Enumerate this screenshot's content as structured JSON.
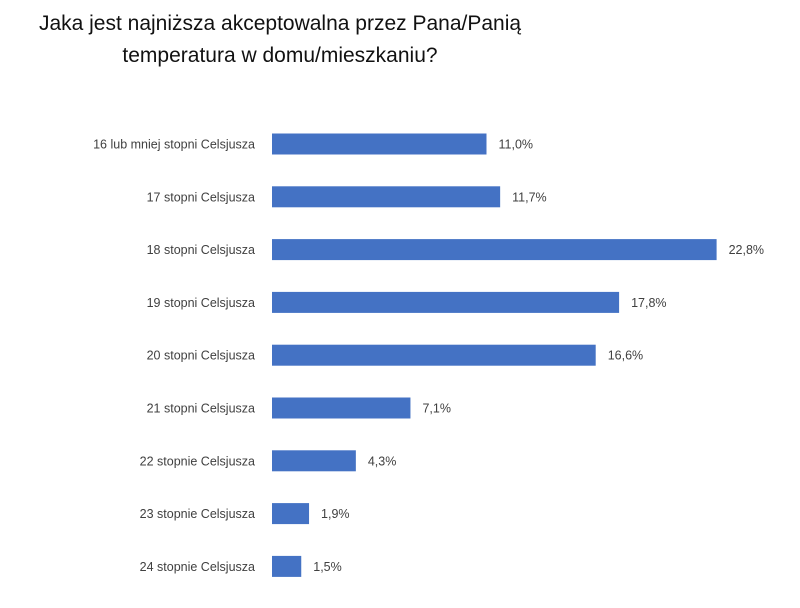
{
  "chart_data": {
    "type": "bar",
    "orientation": "horizontal",
    "title_lines": [
      "Jaka jest najniższa akceptowalna przez Pana/Panią",
      "temperatura w domu/mieszkaniu?"
    ],
    "categories": [
      "16 lub mniej stopni Celsjusza",
      "17 stopni Celsjusza",
      "18 stopni Celsjusza",
      "19 stopni Celsjusza",
      "20 stopni Celsjusza",
      "21 stopni Celsjusza",
      "22 stopnie Celsjusza",
      "23 stopnie Celsjusza",
      "24 stopnie Celsjusza"
    ],
    "values": [
      11.0,
      11.7,
      22.8,
      17.8,
      16.6,
      7.1,
      4.3,
      1.9,
      1.5
    ],
    "data_labels": [
      "11,0%",
      "11,7%",
      "22,8%",
      "17,8%",
      "16,6%",
      "7,1%",
      "4,3%",
      "1,9%",
      "1,5%"
    ],
    "unit": "%",
    "bar_color": "#4472C4",
    "grid": false,
    "legend": "none"
  }
}
